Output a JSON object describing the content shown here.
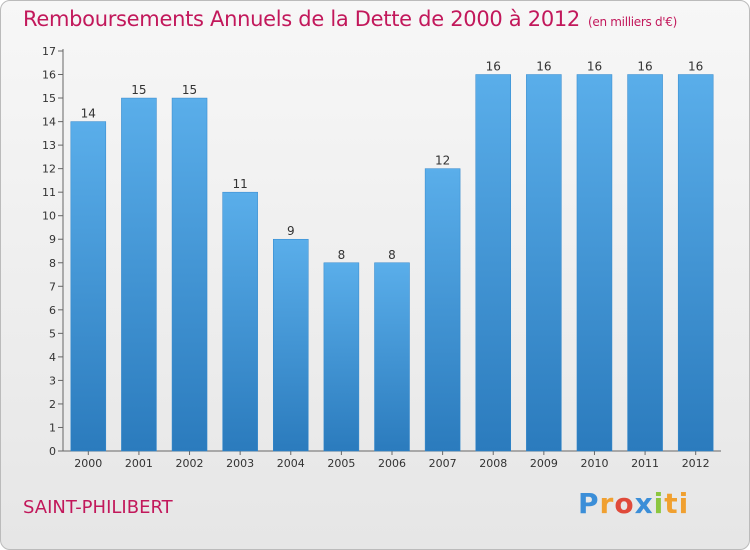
{
  "chart_data": {
    "type": "bar",
    "title": "Remboursements Annuels de la Dette de 2000 à 2012",
    "subtitle": "(en milliers d'€)",
    "categories": [
      "2000",
      "2001",
      "2002",
      "2003",
      "2004",
      "2005",
      "2006",
      "2007",
      "2008",
      "2009",
      "2010",
      "2011",
      "2012"
    ],
    "values": [
      14,
      15,
      15,
      11,
      9,
      8,
      8,
      12,
      16,
      16,
      16,
      16,
      16
    ],
    "ylim": [
      0,
      17
    ],
    "yticks": [
      0,
      1,
      2,
      3,
      4,
      5,
      6,
      7,
      8,
      9,
      10,
      11,
      12,
      13,
      14,
      15,
      16,
      17
    ],
    "grid": false,
    "bar_color_top": "#5aaeea",
    "bar_color_bottom": "#2b7bbd"
  },
  "footer": {
    "place": "SAINT-PHILIBERT",
    "logo_letters": [
      "P",
      "r",
      "o",
      "x",
      "i",
      "ti"
    ]
  }
}
